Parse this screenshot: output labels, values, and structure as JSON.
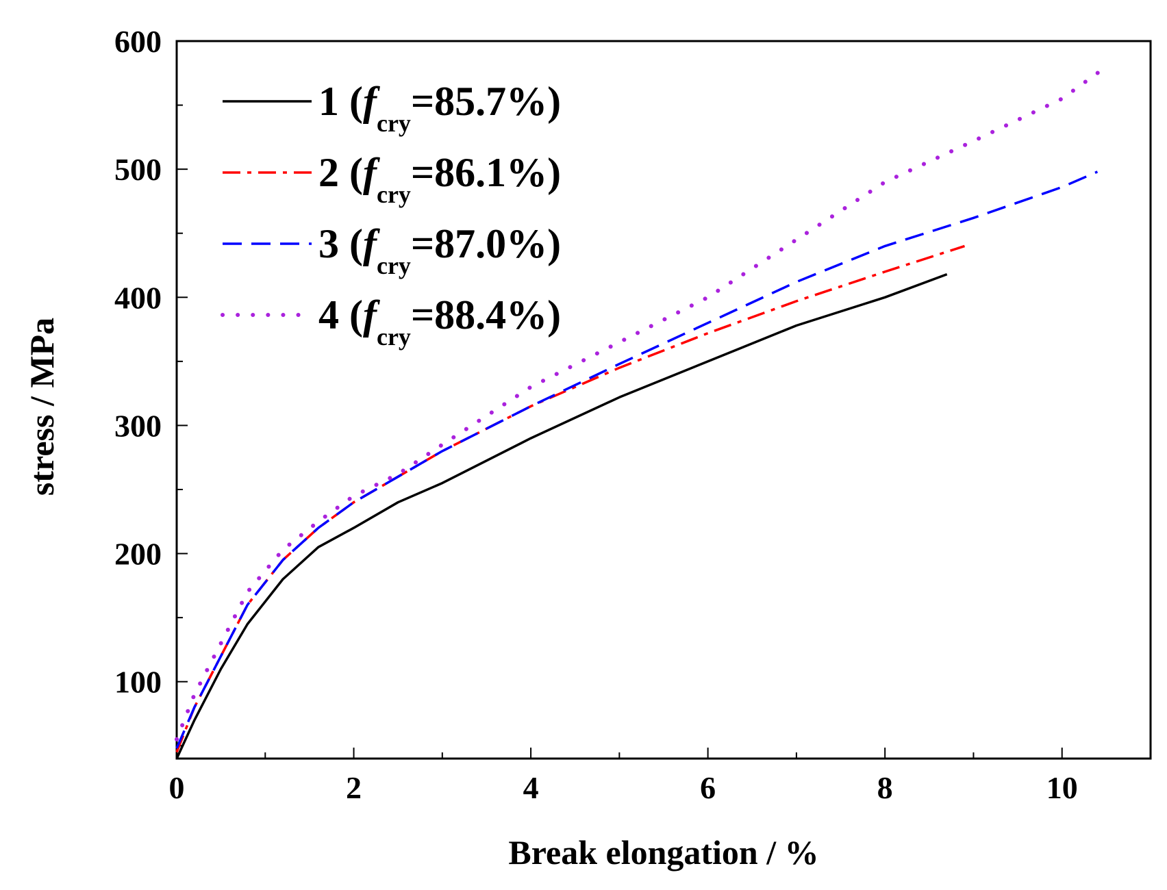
{
  "chart_data": {
    "type": "line",
    "title": "",
    "xlabel": "Break elongation / %",
    "ylabel": "stress / MPa",
    "xlim": [
      0,
      11
    ],
    "ylim": [
      40,
      600
    ],
    "x_ticks": [
      0,
      2,
      4,
      6,
      8,
      10
    ],
    "y_ticks": [
      100,
      200,
      300,
      400,
      500,
      600
    ],
    "legend_position": "top-left",
    "series": [
      {
        "name": "1 (fcry=85.7%)",
        "label_prefix": "1 (",
        "label_var": "f",
        "label_sub": "cry",
        "label_suffix": "=85.7%)",
        "color": "#000000",
        "dash": "solid",
        "x": [
          0,
          0.2,
          0.5,
          0.8,
          1.2,
          1.6,
          2.0,
          2.5,
          3.0,
          4.0,
          5.0,
          6.0,
          7.0,
          8.0,
          8.7
        ],
        "y": [
          40,
          70,
          110,
          145,
          180,
          205,
          220,
          240,
          255,
          290,
          322,
          350,
          378,
          400,
          418
        ]
      },
      {
        "name": "2 (fcry=86.1%)",
        "label_prefix": "2 (",
        "label_var": "f",
        "label_sub": "cry",
        "label_suffix": "=86.1%)",
        "color": "#ff0000",
        "dash": "dashdot",
        "x": [
          0,
          0.2,
          0.5,
          0.8,
          1.2,
          1.6,
          2.0,
          2.5,
          3.0,
          4.0,
          5.0,
          6.0,
          7.0,
          8.0,
          8.9
        ],
        "y": [
          45,
          80,
          120,
          160,
          195,
          220,
          240,
          260,
          280,
          315,
          345,
          372,
          397,
          420,
          440
        ]
      },
      {
        "name": "3 (fcry=87.0%)",
        "label_prefix": "3 (",
        "label_var": "f",
        "label_sub": "cry",
        "label_suffix": "=87.0%)",
        "color": "#0000ff",
        "dash": "dashed",
        "x": [
          0,
          0.2,
          0.5,
          0.8,
          1.2,
          1.6,
          2.0,
          2.5,
          3.0,
          4.0,
          5.0,
          6.0,
          7.0,
          8.0,
          9.0,
          10.0,
          10.4
        ],
        "y": [
          48,
          80,
          120,
          160,
          195,
          220,
          240,
          260,
          280,
          315,
          348,
          380,
          412,
          440,
          462,
          486,
          498
        ]
      },
      {
        "name": "4 (fcry=88.4%)",
        "label_prefix": "4 (",
        "label_var": "f",
        "label_sub": "cry",
        "label_suffix": "=88.4%)",
        "color": "#aa22dd",
        "dash": "dotted",
        "x": [
          0,
          0.2,
          0.5,
          0.8,
          1.2,
          1.6,
          2.0,
          2.5,
          3.0,
          4.0,
          5.0,
          6.0,
          7.0,
          8.0,
          9.0,
          10.0,
          10.5
        ],
        "y": [
          55,
          90,
          130,
          170,
          203,
          225,
          245,
          262,
          285,
          330,
          365,
          400,
          445,
          490,
          522,
          555,
          580
        ]
      }
    ]
  }
}
